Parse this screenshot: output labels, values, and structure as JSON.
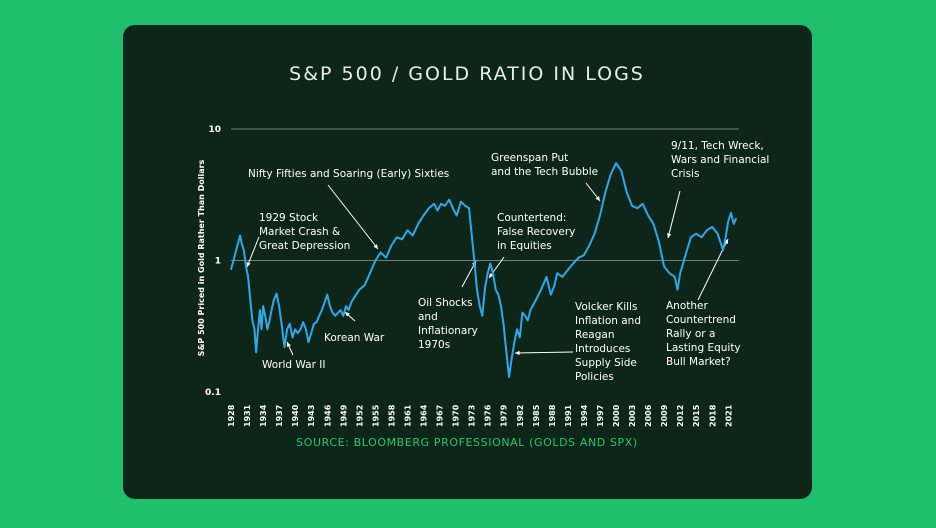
{
  "chart_data": {
    "type": "line",
    "title": "S&P 500 / GOLD RATIO IN LOGS",
    "source": "SOURCE: BLOOMBERG PROFESSIONAL (GOLDS AND SPX)",
    "ylabel": "S&P 500 Priced in Gold Rather Than Dollars",
    "xlabel": "",
    "y_scale": "log",
    "ylim": [
      0.1,
      10
    ],
    "xlim": [
      1928,
      2023
    ],
    "y_ticks": [
      "10",
      "1",
      "0.1"
    ],
    "x_ticks": [
      "1928",
      "1931",
      "1934",
      "1937",
      "1940",
      "1943",
      "1946",
      "1949",
      "1952",
      "1955",
      "1958",
      "1961",
      "1964",
      "1967",
      "1970",
      "1973",
      "1976",
      "1979",
      "1982",
      "1985",
      "1988",
      "1991",
      "1994",
      "1997",
      "2000",
      "2003",
      "2006",
      "2009",
      "2012",
      "2015",
      "2018",
      "2021"
    ],
    "grid": {
      "horizontal_lines_at": [
        10,
        1
      ]
    },
    "colors": {
      "line": "#2fa8e8",
      "background": "#0e2619",
      "page": "#1fbf6e",
      "gridline": "#6f8378",
      "title": "#e8efe9",
      "source": "#25c86e"
    },
    "series": [
      {
        "values": [
          [
            1928.0,
            0.85
          ],
          [
            1928.6,
            1.05
          ],
          [
            1929.2,
            1.3
          ],
          [
            1929.7,
            1.55
          ],
          [
            1930.0,
            1.35
          ],
          [
            1930.4,
            1.2
          ],
          [
            1930.8,
            0.9
          ],
          [
            1931.2,
            0.75
          ],
          [
            1931.6,
            0.5
          ],
          [
            1932.0,
            0.35
          ],
          [
            1932.4,
            0.3
          ],
          [
            1932.7,
            0.2
          ],
          [
            1933.0,
            0.28
          ],
          [
            1933.4,
            0.42
          ],
          [
            1933.7,
            0.3
          ],
          [
            1934.0,
            0.45
          ],
          [
            1934.4,
            0.38
          ],
          [
            1934.8,
            0.3
          ],
          [
            1935.2,
            0.35
          ],
          [
            1935.6,
            0.42
          ],
          [
            1936.0,
            0.5
          ],
          [
            1936.5,
            0.56
          ],
          [
            1937.0,
            0.45
          ],
          [
            1937.5,
            0.32
          ],
          [
            1938.0,
            0.22
          ],
          [
            1938.5,
            0.3
          ],
          [
            1939.0,
            0.33
          ],
          [
            1939.5,
            0.26
          ],
          [
            1940.0,
            0.3
          ],
          [
            1940.5,
            0.28
          ],
          [
            1941.0,
            0.3
          ],
          [
            1941.5,
            0.34
          ],
          [
            1942.0,
            0.3
          ],
          [
            1942.5,
            0.24
          ],
          [
            1943.0,
            0.28
          ],
          [
            1943.5,
            0.33
          ],
          [
            1944.0,
            0.34
          ],
          [
            1944.5,
            0.38
          ],
          [
            1945.0,
            0.42
          ],
          [
            1945.5,
            0.48
          ],
          [
            1946.0,
            0.55
          ],
          [
            1946.5,
            0.45
          ],
          [
            1947.0,
            0.4
          ],
          [
            1947.5,
            0.38
          ],
          [
            1948.0,
            0.4
          ],
          [
            1948.5,
            0.42
          ],
          [
            1949.0,
            0.38
          ],
          [
            1949.5,
            0.45
          ],
          [
            1950.0,
            0.42
          ],
          [
            1950.5,
            0.48
          ],
          [
            1951.0,
            0.52
          ],
          [
            1952.0,
            0.6
          ],
          [
            1953.0,
            0.65
          ],
          [
            1954.0,
            0.8
          ],
          [
            1955.0,
            1.0
          ],
          [
            1956.0,
            1.15
          ],
          [
            1957.0,
            1.05
          ],
          [
            1958.0,
            1.3
          ],
          [
            1959.0,
            1.5
          ],
          [
            1960.0,
            1.45
          ],
          [
            1961.0,
            1.7
          ],
          [
            1962.0,
            1.55
          ],
          [
            1963.0,
            1.9
          ],
          [
            1964.0,
            2.2
          ],
          [
            1965.0,
            2.5
          ],
          [
            1966.0,
            2.7
          ],
          [
            1966.6,
            2.4
          ],
          [
            1967.3,
            2.7
          ],
          [
            1968.0,
            2.6
          ],
          [
            1968.8,
            2.9
          ],
          [
            1969.5,
            2.5
          ],
          [
            1970.2,
            2.2
          ],
          [
            1971.0,
            2.8
          ],
          [
            1971.8,
            2.6
          ],
          [
            1972.5,
            2.5
          ],
          [
            1973.0,
            1.6
          ],
          [
            1973.5,
            1.0
          ],
          [
            1974.0,
            0.6
          ],
          [
            1974.5,
            0.45
          ],
          [
            1975.0,
            0.38
          ],
          [
            1975.5,
            0.62
          ],
          [
            1976.0,
            0.8
          ],
          [
            1976.5,
            0.95
          ],
          [
            1977.0,
            0.8
          ],
          [
            1977.5,
            0.6
          ],
          [
            1978.0,
            0.55
          ],
          [
            1978.5,
            0.45
          ],
          [
            1979.0,
            0.32
          ],
          [
            1979.5,
            0.2
          ],
          [
            1980.0,
            0.13
          ],
          [
            1980.5,
            0.18
          ],
          [
            1981.0,
            0.24
          ],
          [
            1981.5,
            0.3
          ],
          [
            1982.0,
            0.26
          ],
          [
            1982.5,
            0.4
          ],
          [
            1983.0,
            0.38
          ],
          [
            1983.5,
            0.35
          ],
          [
            1984.0,
            0.42
          ],
          [
            1985.0,
            0.5
          ],
          [
            1986.0,
            0.6
          ],
          [
            1987.0,
            0.75
          ],
          [
            1987.8,
            0.55
          ],
          [
            1988.5,
            0.65
          ],
          [
            1989.0,
            0.8
          ],
          [
            1990.0,
            0.75
          ],
          [
            1991.0,
            0.85
          ],
          [
            1992.0,
            0.95
          ],
          [
            1993.0,
            1.05
          ],
          [
            1994.0,
            1.1
          ],
          [
            1995.0,
            1.3
          ],
          [
            1996.0,
            1.6
          ],
          [
            1997.0,
            2.2
          ],
          [
            1998.0,
            3.3
          ],
          [
            1999.0,
            4.5
          ],
          [
            2000.0,
            5.5
          ],
          [
            2001.0,
            4.8
          ],
          [
            2002.0,
            3.3
          ],
          [
            2003.0,
            2.6
          ],
          [
            2004.0,
            2.5
          ],
          [
            2005.0,
            2.7
          ],
          [
            2006.0,
            2.2
          ],
          [
            2007.0,
            1.9
          ],
          [
            2008.0,
            1.4
          ],
          [
            2009.0,
            0.9
          ],
          [
            2010.0,
            0.8
          ],
          [
            2011.0,
            0.75
          ],
          [
            2011.5,
            0.6
          ],
          [
            2012.0,
            0.8
          ],
          [
            2013.0,
            1.1
          ],
          [
            2014.0,
            1.5
          ],
          [
            2015.0,
            1.6
          ],
          [
            2016.0,
            1.5
          ],
          [
            2017.0,
            1.7
          ],
          [
            2018.0,
            1.8
          ],
          [
            2019.0,
            1.6
          ],
          [
            2020.0,
            1.2
          ],
          [
            2020.5,
            1.5
          ],
          [
            2021.0,
            2.0
          ],
          [
            2021.5,
            2.3
          ],
          [
            2022.0,
            1.9
          ],
          [
            2022.5,
            2.1
          ]
        ]
      }
    ],
    "annotations": [
      {
        "lines": [
          "1929 Stock",
          "Market Crash &",
          "Great Depression"
        ]
      },
      {
        "lines": [
          "Nifty Fifties and Soaring (Early) Sixties"
        ]
      },
      {
        "lines": [
          "Greenspan Put",
          "and the Tech Bubble"
        ]
      },
      {
        "lines": [
          "9/11, Tech Wreck,",
          "Wars and Financial",
          "Crisis"
        ]
      },
      {
        "lines": [
          "Countertend:",
          "False Recovery",
          "in Equities"
        ]
      },
      {
        "lines": [
          "Oil Shocks",
          "and",
          "Inflationary",
          "1970s"
        ]
      },
      {
        "lines": [
          "Volcker Kills",
          "Inflation and",
          "Reagan",
          "Introduces",
          "Supply Side",
          "Policies"
        ]
      },
      {
        "lines": [
          "Another",
          "Countertrend",
          "Rally or a",
          "Lasting Equity",
          "Bull Market?"
        ]
      },
      {
        "lines": [
          "Korean War"
        ]
      },
      {
        "lines": [
          "World War II"
        ]
      }
    ]
  }
}
